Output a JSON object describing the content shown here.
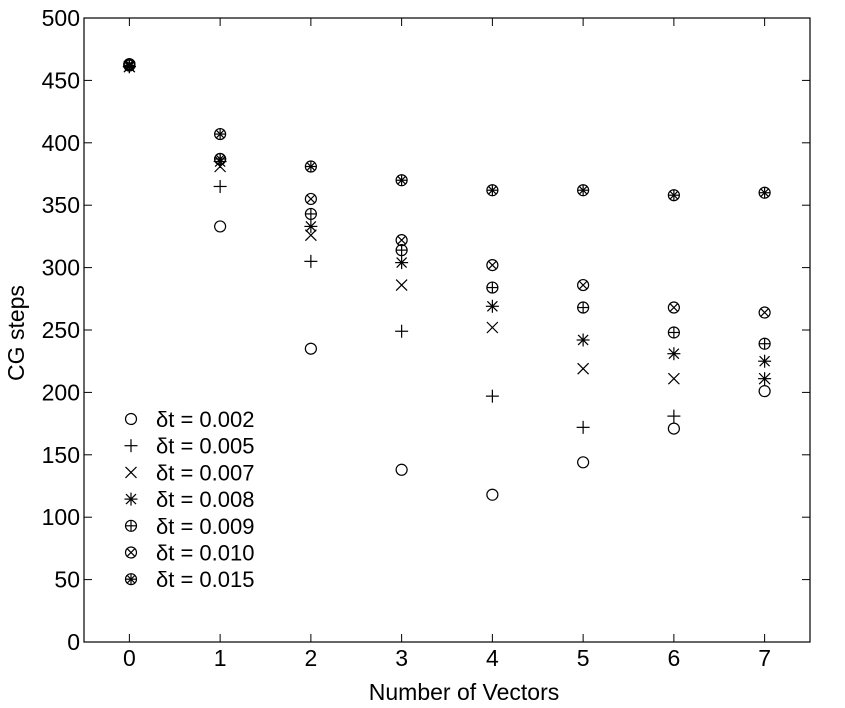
{
  "chart_data": {
    "type": "scatter",
    "xlabel": "Number of Vectors",
    "ylabel": "CG steps",
    "xlim": [
      -0.5,
      7.5
    ],
    "ylim": [
      0,
      500
    ],
    "x_ticks": [
      0,
      1,
      2,
      3,
      4,
      5,
      6,
      7
    ],
    "y_ticks": [
      0,
      50,
      100,
      150,
      200,
      250,
      300,
      350,
      400,
      450,
      500
    ],
    "grid": false,
    "legend_position": "bottom-left",
    "x": [
      0,
      1,
      2,
      3,
      4,
      5,
      6,
      7
    ],
    "series": [
      {
        "name": "δt = 0.002",
        "marker": "circle",
        "values": [
          463,
          333,
          235,
          138,
          118,
          144,
          171,
          201
        ]
      },
      {
        "name": "δt = 0.005",
        "marker": "plus",
        "values": [
          461,
          365,
          305,
          249,
          197,
          172,
          181,
          211
        ]
      },
      {
        "name": "δt = 0.007",
        "marker": "x",
        "values": [
          461,
          381,
          326,
          286,
          252,
          219,
          211,
          211
        ]
      },
      {
        "name": "δt = 0.008",
        "marker": "asterisk",
        "values": [
          461,
          385,
          333,
          304,
          269,
          242,
          231,
          225
        ]
      },
      {
        "name": "δt = 0.009",
        "marker": "circle-plus",
        "values": [
          462,
          387,
          343,
          314,
          284,
          268,
          248,
          239
        ]
      },
      {
        "name": "δt = 0.010",
        "marker": "circle-x",
        "values": [
          463,
          387,
          355,
          322,
          302,
          286,
          268,
          264
        ]
      },
      {
        "name": "δt = 0.015",
        "marker": "circle-asterisk",
        "values": [
          462,
          407,
          381,
          370,
          362,
          362,
          358,
          360
        ]
      }
    ]
  }
}
